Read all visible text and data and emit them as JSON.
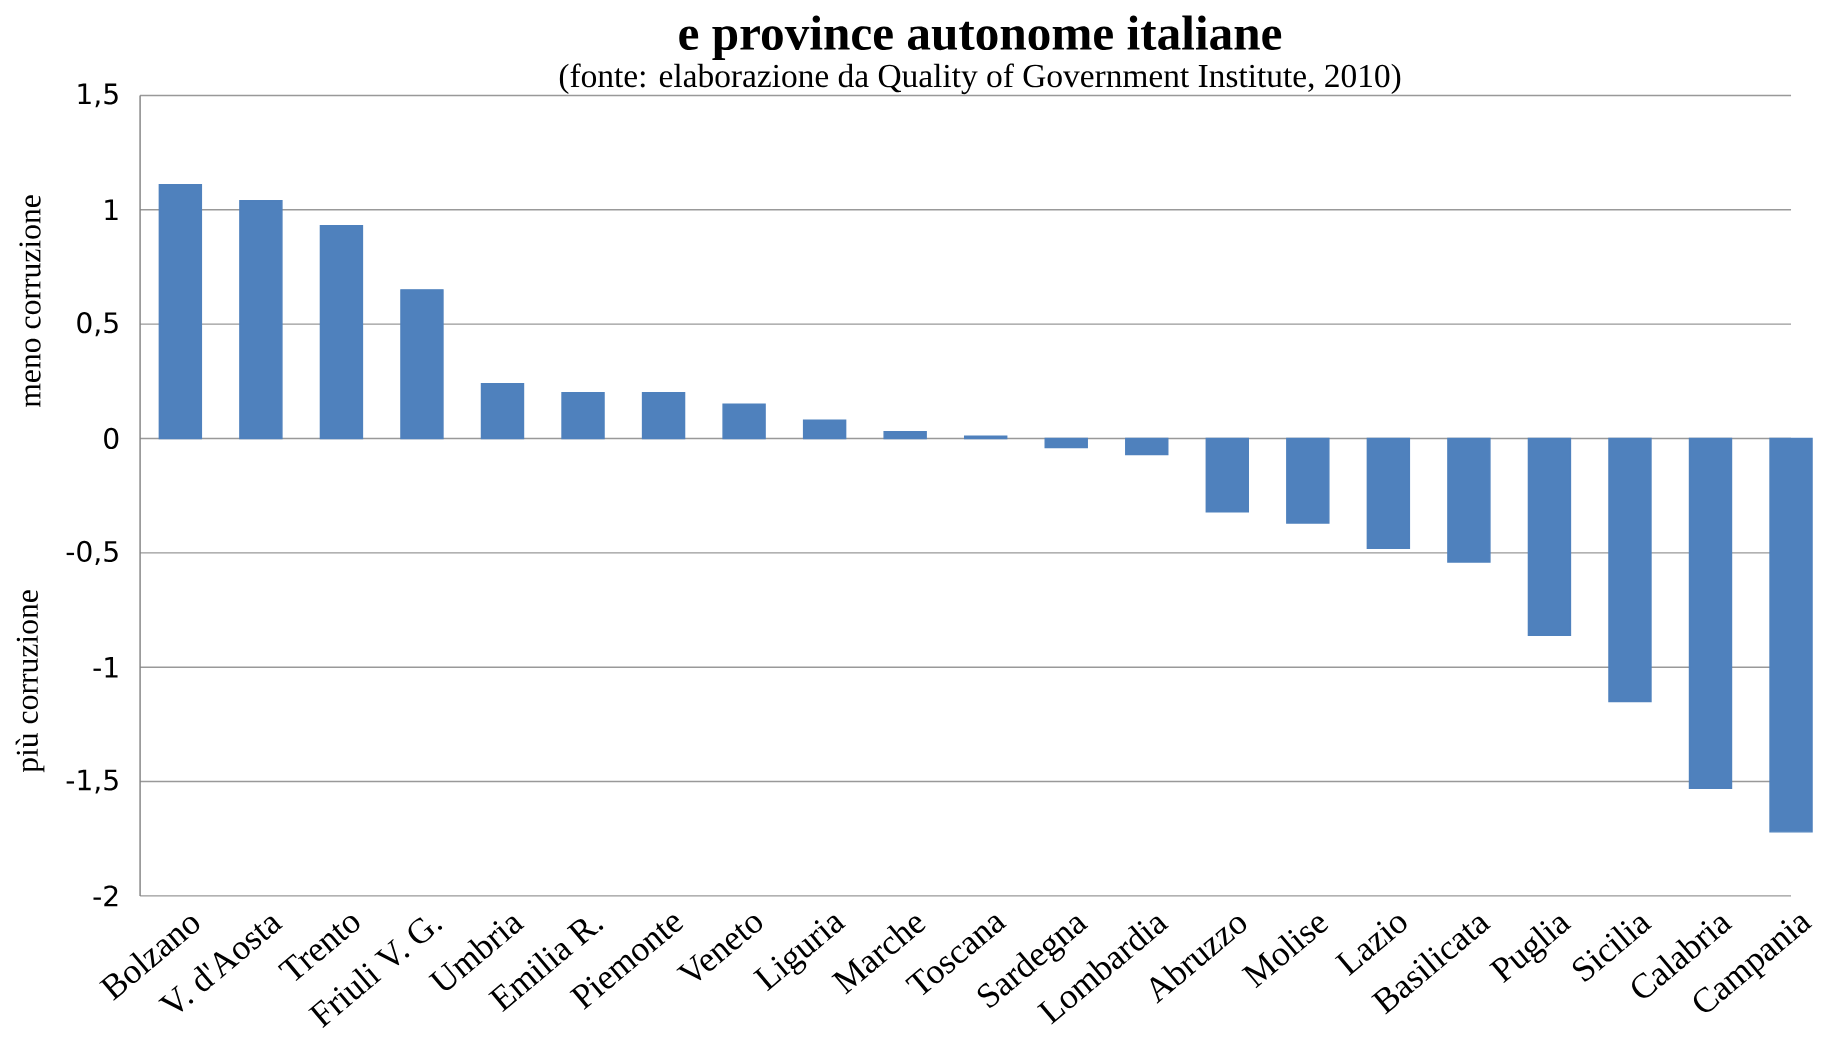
{
  "chart_data": {
    "type": "bar",
    "title": "e province autonome italiane",
    "subtitle": "(fonte: elaborazione da Quality of Government Institute, 2010)",
    "annotations": [
      "meno corruzione",
      "più corruzione"
    ],
    "categories": [
      "Bolzano",
      "V. d'Aosta",
      "Trento",
      "Friuli V. G.",
      "Umbria",
      "Emilia R.",
      "Piemonte",
      "Veneto",
      "Liguria",
      "Marche",
      "Toscana",
      "Sardegna",
      "Lombardia",
      "Abruzzo",
      "Molise",
      "Lazio",
      "Basilicata",
      "Puglia",
      "Sicilia",
      "Calabria",
      "Campania"
    ],
    "values": [
      1.11,
      1.04,
      0.93,
      0.65,
      0.24,
      0.2,
      0.2,
      0.15,
      0.08,
      0.03,
      0.01,
      -0.04,
      -0.07,
      -0.32,
      -0.37,
      -0.48,
      -0.54,
      -0.86,
      -1.15,
      -1.53,
      -1.72
    ],
    "color": "#4f81bd",
    "ylim": [
      -2,
      1.5
    ],
    "yticks": [
      {
        "value": -2,
        "label": "-2"
      },
      {
        "value": -1.5,
        "label": "-1,5"
      },
      {
        "value": -1,
        "label": "-1"
      },
      {
        "value": -0.5,
        "label": "-0,5"
      },
      {
        "value": 0,
        "label": "0"
      },
      {
        "value": 0.5,
        "label": "0,5"
      },
      {
        "value": 1,
        "label": "1"
      },
      {
        "value": 1.5,
        "label": "1,5"
      }
    ],
    "grid": "y"
  }
}
